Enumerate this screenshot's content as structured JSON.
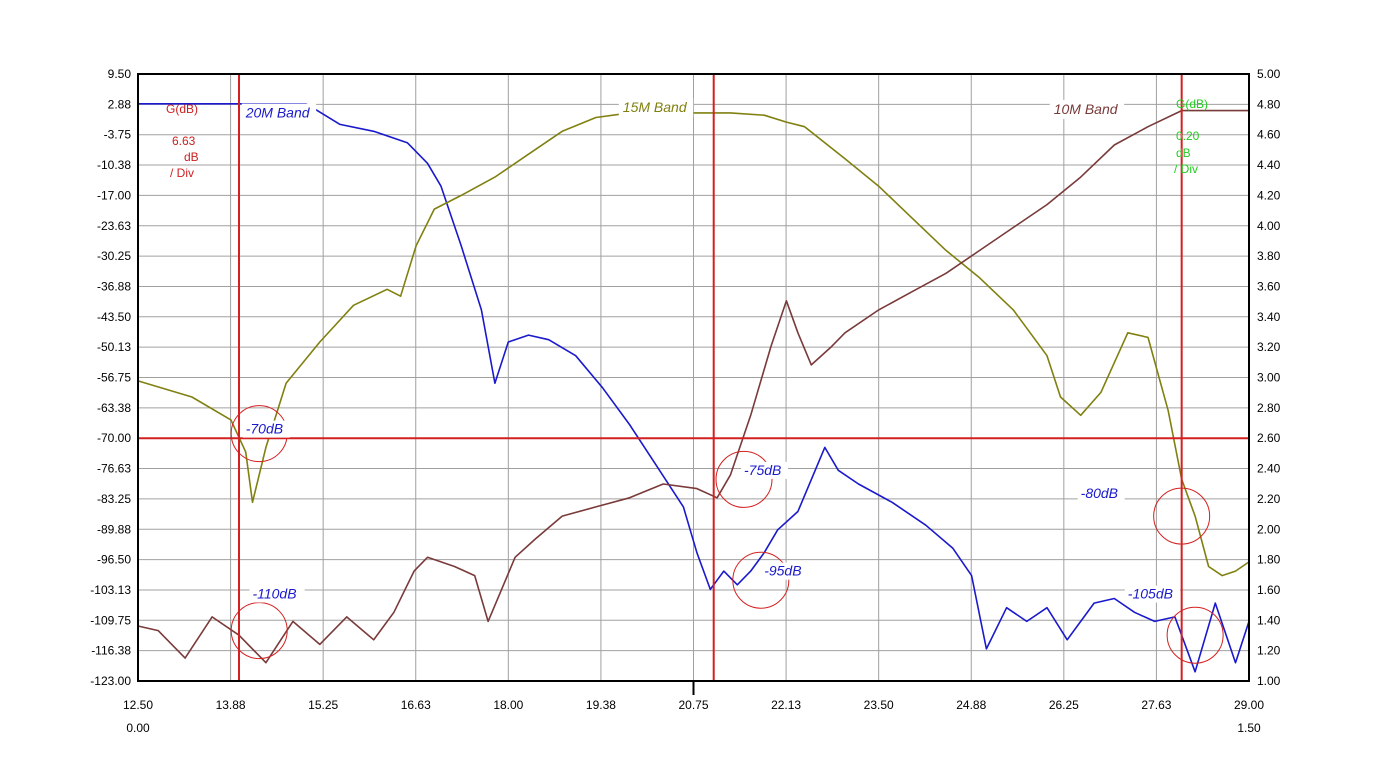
{
  "colors": {
    "background": "#ffffff",
    "grid": "#a0a0a0",
    "frame": "#000000",
    "marker": "#d42020",
    "series_20m": "#1a1acc",
    "series_15m": "#808010",
    "series_10m": "#7a3a3a",
    "left_scale_text": "#cc2020",
    "right_scale_text": "#20cc20"
  },
  "chart_data": {
    "type": "line",
    "x_ticks": [
      "12.50",
      "13.88",
      "15.25",
      "16.63",
      "18.00",
      "19.38",
      "20.75",
      "22.13",
      "23.50",
      "24.88",
      "26.25",
      "27.63",
      "29.00"
    ],
    "x_sub_labels": [
      "0.00",
      "1.50"
    ],
    "y_left_ticks": [
      "9.50",
      "2.88",
      "-3.75",
      "-10.38",
      "-17.00",
      "-23.63",
      "-30.25",
      "-36.88",
      "-43.50",
      "-50.13",
      "-56.75",
      "-63.38",
      "-70.00",
      "-76.63",
      "-83.25",
      "-89.88",
      "-96.50",
      "-103.13",
      "-109.75",
      "-116.38",
      "-123.00"
    ],
    "y_right_ticks": [
      "5.00",
      "4.80",
      "4.60",
      "4.40",
      "4.20",
      "4.00",
      "3.80",
      "3.60",
      "3.40",
      "3.20",
      "3.00",
      "2.80",
      "2.60",
      "2.40",
      "2.20",
      "2.00",
      "1.80",
      "1.60",
      "1.40",
      "1.20",
      "1.00"
    ],
    "xlim": [
      12.5,
      29.0
    ],
    "ylim": [
      -123.0,
      9.5
    ],
    "left_scale": {
      "title": "G(dB)",
      "value": "6.63",
      "unit": "dB",
      "per": "/ Div"
    },
    "right_scale": {
      "title": "G(dB)",
      "value": "0.20",
      "unit": "dB",
      "per": "/ Div"
    },
    "markers": {
      "x": [
        14.0,
        21.05,
        28.0
      ],
      "y": -70.0
    },
    "series": [
      {
        "name": "20M Band",
        "x": [
          12.5,
          14.0,
          15.0,
          15.5,
          16.0,
          16.5,
          16.8,
          17.0,
          17.3,
          17.6,
          17.8,
          18.0,
          18.3,
          18.6,
          19.0,
          19.4,
          19.8,
          20.2,
          20.6,
          20.8,
          21.0,
          21.1,
          21.2,
          21.4,
          21.6,
          21.8,
          22.0,
          22.3,
          22.7,
          22.9,
          23.2,
          23.7,
          24.2,
          24.6,
          24.88,
          25.1,
          25.4,
          25.7,
          26.0,
          26.3,
          26.7,
          27.0,
          27.3,
          27.6,
          27.9,
          28.2,
          28.5,
          28.8,
          29.0
        ],
        "y": [
          3.0,
          3.0,
          3.0,
          -1.5,
          -3.0,
          -5.5,
          -10.0,
          -15.0,
          -28.0,
          -42.0,
          -58.0,
          -49.0,
          -47.5,
          -48.5,
          -52.0,
          -59.0,
          -67.0,
          -76.0,
          -85.0,
          -95.0,
          -103.0,
          -101.0,
          -99.0,
          -102.0,
          -99.0,
          -95.0,
          -90.0,
          -86.0,
          -72.0,
          -77.0,
          -80.0,
          -84.0,
          -89.0,
          -94.0,
          -100.0,
          -116.0,
          -107.0,
          -110.0,
          -107.0,
          -114.0,
          -106.0,
          -105.0,
          -108.0,
          -110.0,
          -109.0,
          -121.0,
          -106.0,
          -119.0,
          -110.0
        ]
      },
      {
        "name": "15M Band",
        "x": [
          12.5,
          13.3,
          13.88,
          14.1,
          14.2,
          14.4,
          14.7,
          15.2,
          15.7,
          16.2,
          16.4,
          16.63,
          16.9,
          17.3,
          17.8,
          18.3,
          18.8,
          19.3,
          19.8,
          20.3,
          20.75,
          21.3,
          21.8,
          22.13,
          22.4,
          23.0,
          23.5,
          24.0,
          24.5,
          25.0,
          25.5,
          26.0,
          26.2,
          26.5,
          26.8,
          27.2,
          27.5,
          27.8,
          28.0,
          28.2,
          28.4,
          28.6,
          28.8,
          29.0
        ],
        "y": [
          -57.5,
          -61.0,
          -66.0,
          -73.0,
          -84.0,
          -72.0,
          -58.0,
          -49.0,
          -41.0,
          -37.5,
          -39.0,
          -28.0,
          -20.0,
          -17.0,
          -13.0,
          -8.0,
          -3.0,
          0.0,
          1.0,
          1.0,
          1.0,
          1.0,
          0.5,
          -1.0,
          -2.0,
          -9.0,
          -15.0,
          -22.0,
          -29.0,
          -35.0,
          -42.0,
          -52.0,
          -61.0,
          -65.0,
          -60.0,
          -47.0,
          -48.0,
          -64.0,
          -79.0,
          -87.0,
          -98.0,
          -100.0,
          -99.0,
          -97.0
        ]
      },
      {
        "name": "10M Band",
        "x": [
          12.5,
          12.8,
          13.2,
          13.6,
          14.0,
          14.4,
          14.8,
          15.2,
          15.6,
          16.0,
          16.3,
          16.6,
          16.8,
          17.0,
          17.2,
          17.5,
          17.7,
          17.9,
          18.1,
          18.4,
          18.8,
          19.3,
          19.8,
          20.3,
          20.8,
          21.1,
          21.3,
          21.6,
          21.9,
          22.13,
          22.3,
          22.5,
          22.8,
          23.0,
          23.5,
          24.0,
          24.5,
          25.0,
          25.5,
          26.0,
          26.5,
          27.0,
          27.5,
          28.0,
          28.5,
          29.0
        ],
        "y": [
          -111.0,
          -112.0,
          -118.0,
          -109.0,
          -113.0,
          -119.0,
          -110.0,
          -115.0,
          -109.0,
          -114.0,
          -108.0,
          -99.0,
          -96.0,
          -97.0,
          -98.0,
          -100.0,
          -110.0,
          -103.0,
          -96.0,
          -92.0,
          -87.0,
          -85.0,
          -83.0,
          -80.0,
          -81.0,
          -83.0,
          -78.0,
          -65.0,
          -50.0,
          -40.0,
          -47.0,
          -54.0,
          -50.0,
          -47.0,
          -42.0,
          -38.0,
          -34.0,
          -29.0,
          -24.0,
          -19.0,
          -13.0,
          -6.0,
          -2.0,
          1.5,
          1.5,
          1.5
        ]
      }
    ],
    "annotations": [
      {
        "text": "-70dB",
        "x": 14.1,
        "y": -69.0
      },
      {
        "text": "-75dB",
        "x": 21.5,
        "y": -78.0
      },
      {
        "text": "-80dB",
        "x": 26.5,
        "y": -83.0
      },
      {
        "text": "-95dB",
        "x": 21.8,
        "y": -100.0
      },
      {
        "text": "-110dB",
        "x": 14.2,
        "y": -105.0
      },
      {
        "text": "-105dB",
        "x": 27.2,
        "y": -105.0
      }
    ],
    "circles": [
      {
        "x": 14.3,
        "y": -69.0
      },
      {
        "x": 21.5,
        "y": -79.0
      },
      {
        "x": 28.0,
        "y": -87.0
      },
      {
        "x": 21.75,
        "y": -101.0
      },
      {
        "x": 14.3,
        "y": -112.0
      },
      {
        "x": 28.2,
        "y": -113.0
      }
    ]
  }
}
